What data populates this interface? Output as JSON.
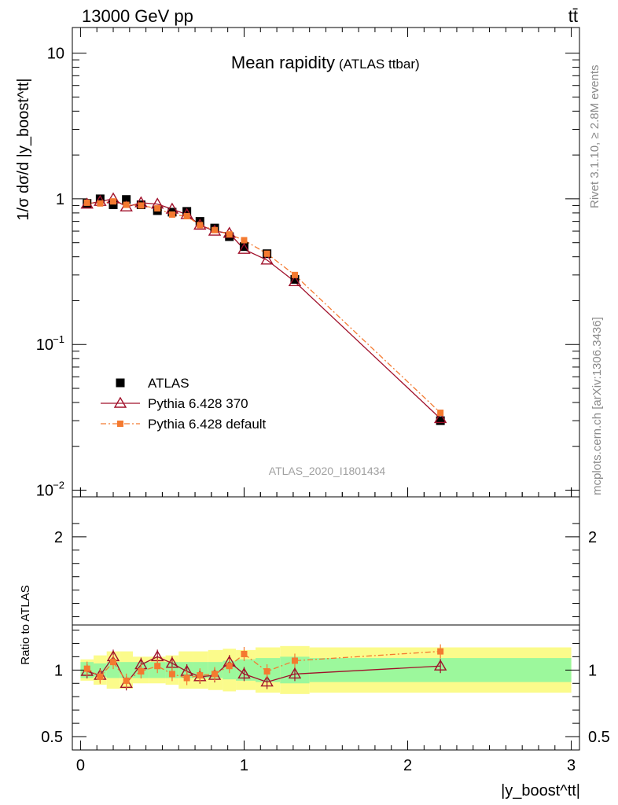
{
  "header": {
    "left": "13000 GeV pp",
    "right": "tt̄"
  },
  "side": {
    "rivet": "Rivet 3.1.10, ≥ 2.8M events",
    "mcplots": "mcplots.cern.ch [arXiv:1306.3436]"
  },
  "chart_data": {
    "type": "line",
    "title": "Mean rapidity",
    "title_suffix": "(ATLAS ttbar)",
    "watermark": "ATLAS_2020_I1801434",
    "ylabel_main": "1/σ dσ/d |y_boost^tt|",
    "ylabel_ratio": "Ratio to ATLAS",
    "xlabel": "|y_boost^tt|",
    "xlim": [
      -0.05,
      3.05
    ],
    "ylim_main": [
      0.009,
      15
    ],
    "ylim_ratio": [
      0.4,
      2.3
    ],
    "yscale_main": "log",
    "x": [
      0.04,
      0.12,
      0.2,
      0.28,
      0.37,
      0.47,
      0.56,
      0.65,
      0.73,
      0.82,
      0.91,
      1.0,
      1.14,
      1.31,
      2.2
    ],
    "series": [
      {
        "name": "ATLAS",
        "color": "#000000",
        "marker": "square",
        "values": [
          0.93,
          1.0,
          0.91,
          0.99,
          0.91,
          0.83,
          0.81,
          0.82,
          0.7,
          0.63,
          0.55,
          0.47,
          0.42,
          0.28,
          0.03
        ]
      },
      {
        "name": "Pythia 6.428 370",
        "color": "#a0102a",
        "marker": "triangle",
        "values": [
          0.92,
          0.96,
          1.0,
          0.88,
          0.94,
          0.92,
          0.85,
          0.78,
          0.66,
          0.6,
          0.58,
          0.45,
          0.38,
          0.27,
          0.031
        ]
      },
      {
        "name": "Pythia 6.428 default",
        "color": "#f47a30",
        "marker": "small-square",
        "values": [
          0.94,
          0.93,
          0.96,
          0.91,
          0.9,
          0.86,
          0.78,
          0.76,
          0.66,
          0.61,
          0.57,
          0.52,
          0.42,
          0.3,
          0.034
        ]
      }
    ],
    "ratio": [
      {
        "name": "Pythia 6.428 370",
        "values": [
          0.99,
          0.96,
          1.1,
          0.9,
          1.04,
          1.1,
          1.05,
          0.99,
          0.95,
          0.96,
          1.06,
          0.97,
          0.91,
          0.97,
          1.03
        ]
      },
      {
        "name": "Pythia 6.428 default",
        "values": [
          1.01,
          0.95,
          1.06,
          0.92,
          0.99,
          1.03,
          0.97,
          0.94,
          0.96,
          0.97,
          1.03,
          1.12,
          0.99,
          1.07,
          1.14
        ]
      }
    ],
    "bands": {
      "x_edges": [
        0.0,
        0.08,
        0.16,
        0.24,
        0.32,
        0.42,
        0.52,
        0.6,
        0.69,
        0.78,
        0.87,
        0.95,
        1.07,
        1.22,
        1.4,
        3.0
      ],
      "inner": [
        0.06,
        0.05,
        0.06,
        0.06,
        0.06,
        0.06,
        0.06,
        0.06,
        0.06,
        0.06,
        0.07,
        0.08,
        0.09,
        0.1,
        0.09
      ],
      "outer": [
        0.08,
        0.11,
        0.14,
        0.14,
        0.1,
        0.1,
        0.11,
        0.14,
        0.14,
        0.15,
        0.16,
        0.15,
        0.17,
        0.18,
        0.17
      ],
      "inner_color": "#9cf89c",
      "outer_color": "#fbfb8b"
    }
  }
}
